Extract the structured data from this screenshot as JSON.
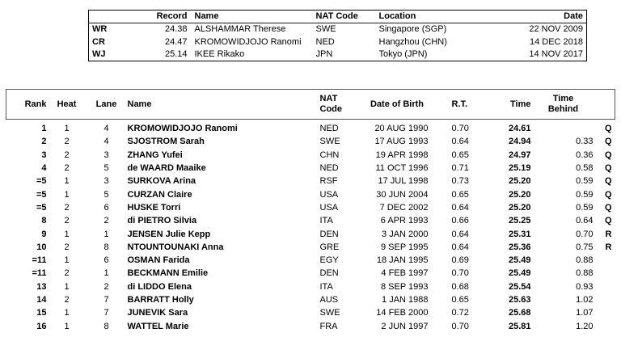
{
  "records_table": {
    "headers": {
      "record": "Record",
      "name": "Name",
      "nat_code": "NAT Code",
      "location": "Location",
      "date": "Date"
    },
    "rows": [
      {
        "label": "WR",
        "record": "24.38",
        "name": "ALSHAMMAR Therese",
        "nat_code": "SWE",
        "location": "Singapore (SGP)",
        "date": "22 NOV 2009"
      },
      {
        "label": "CR",
        "record": "24.47",
        "name": "KROMOWIDJOJO Ranomi",
        "nat_code": "NED",
        "location": "Hangzhou (CHN)",
        "date": "14 DEC 2018"
      },
      {
        "label": "WJ",
        "record": "25.14",
        "name": "IKEE Rikako",
        "nat_code": "JPN",
        "location": "Tokyo (JPN)",
        "date": "14 NOV 2017"
      }
    ]
  },
  "results_table": {
    "headers": {
      "rank": "Rank",
      "heat": "Heat",
      "lane": "Lane",
      "name": "Name",
      "nat_code": "NAT\nCode",
      "dob": "Date of Birth",
      "rt": "R.T.",
      "time": "Time",
      "behind": "Time\nBehind",
      "qual": ""
    },
    "rows": [
      {
        "rank": "1",
        "heat": "1",
        "lane": "4",
        "name": "KROMOWIDJOJO Ranomi",
        "nat": "NED",
        "dob": "20 AUG 1990",
        "rt": "0.70",
        "time": "24.61",
        "behind": "",
        "qual": "Q"
      },
      {
        "rank": "2",
        "heat": "2",
        "lane": "4",
        "name": "SJOSTROM Sarah",
        "nat": "SWE",
        "dob": "17 AUG 1993",
        "rt": "0.64",
        "time": "24.94",
        "behind": "0.33",
        "qual": "Q"
      },
      {
        "rank": "3",
        "heat": "2",
        "lane": "3",
        "name": "ZHANG Yufei",
        "nat": "CHN",
        "dob": "19 APR 1998",
        "rt": "0.65",
        "time": "24.97",
        "behind": "0.36",
        "qual": "Q"
      },
      {
        "rank": "4",
        "heat": "2",
        "lane": "5",
        "name": "de WAARD Maaike",
        "nat": "NED",
        "dob": "11 OCT 1996",
        "rt": "0.71",
        "time": "25.19",
        "behind": "0.58",
        "qual": "Q"
      },
      {
        "rank": "=5",
        "heat": "1",
        "lane": "3",
        "name": "SURKOVA Arina",
        "nat": "RSF",
        "dob": "17 JUL 1998",
        "rt": "0.73",
        "time": "25.20",
        "behind": "0.59",
        "qual": "Q"
      },
      {
        "rank": "=5",
        "heat": "1",
        "lane": "5",
        "name": "CURZAN Claire",
        "nat": "USA",
        "dob": "30 JUN 2004",
        "rt": "0.65",
        "time": "25.20",
        "behind": "0.59",
        "qual": "Q"
      },
      {
        "rank": "=5",
        "heat": "2",
        "lane": "6",
        "name": "HUSKE Torri",
        "nat": "USA",
        "dob": "7 DEC 2002",
        "rt": "0.64",
        "time": "25.20",
        "behind": "0.59",
        "qual": "Q"
      },
      {
        "rank": "8",
        "heat": "2",
        "lane": "2",
        "name": "di PIETRO Silvia",
        "nat": "ITA",
        "dob": "6 APR 1993",
        "rt": "0.66",
        "time": "25.25",
        "behind": "0.64",
        "qual": "Q"
      },
      {
        "rank": "9",
        "heat": "1",
        "lane": "1",
        "name": "JENSEN Julie Kepp",
        "nat": "DEN",
        "dob": "3 JAN 2000",
        "rt": "0.64",
        "time": "25.31",
        "behind": "0.70",
        "qual": "R"
      },
      {
        "rank": "10",
        "heat": "2",
        "lane": "8",
        "name": "NTOUNTOUNAKI Anna",
        "nat": "GRE",
        "dob": "9 SEP 1995",
        "rt": "0.64",
        "time": "25.36",
        "behind": "0.75",
        "qual": "R"
      },
      {
        "rank": "=11",
        "heat": "1",
        "lane": "6",
        "name": "OSMAN Farida",
        "nat": "EGY",
        "dob": "18 JAN 1995",
        "rt": "0.69",
        "time": "25.49",
        "behind": "0.88",
        "qual": ""
      },
      {
        "rank": "=11",
        "heat": "2",
        "lane": "1",
        "name": "BECKMANN Emilie",
        "nat": "DEN",
        "dob": "4 FEB 1997",
        "rt": "0.70",
        "time": "25.49",
        "behind": "0.88",
        "qual": ""
      },
      {
        "rank": "13",
        "heat": "1",
        "lane": "2",
        "name": "di LIDDO Elena",
        "nat": "ITA",
        "dob": "8 SEP 1993",
        "rt": "0.68",
        "time": "25.54",
        "behind": "0.93",
        "qual": ""
      },
      {
        "rank": "14",
        "heat": "2",
        "lane": "7",
        "name": "BARRATT Holly",
        "nat": "AUS",
        "dob": "1 JAN 1988",
        "rt": "0.65",
        "time": "25.63",
        "behind": "1.02",
        "qual": ""
      },
      {
        "rank": "15",
        "heat": "1",
        "lane": "7",
        "name": "JUNEVIK Sara",
        "nat": "SWE",
        "dob": "14 FEB 2000",
        "rt": "0.72",
        "time": "25.68",
        "behind": "1.07",
        "qual": ""
      },
      {
        "rank": "16",
        "heat": "1",
        "lane": "8",
        "name": "WATTEL Marie",
        "nat": "FRA",
        "dob": "2 JUN 1997",
        "rt": "0.70",
        "time": "25.81",
        "behind": "1.20",
        "qual": ""
      }
    ]
  }
}
